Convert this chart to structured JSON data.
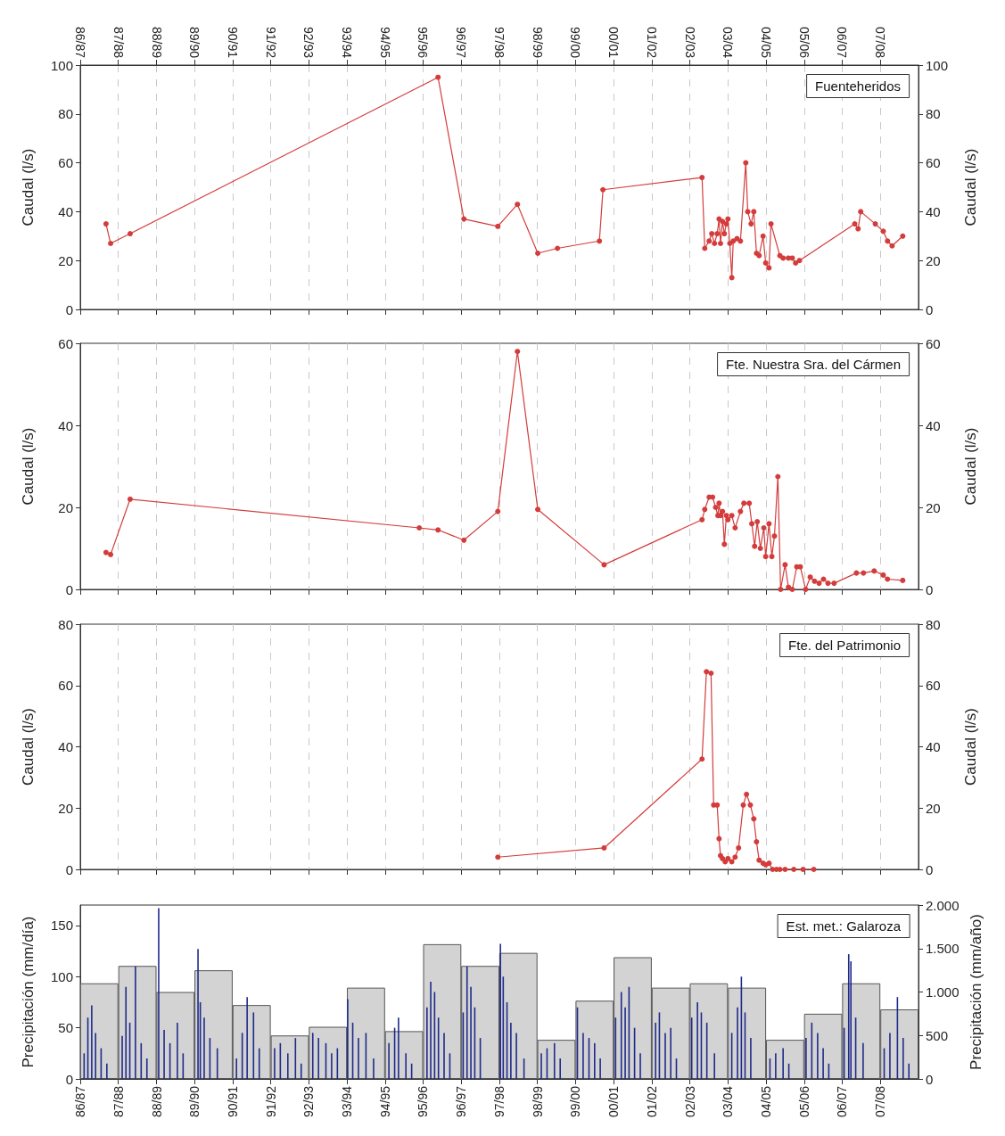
{
  "chart_data": [
    {
      "type": "line",
      "title": "Fuenteheridos",
      "ylabel": "Caudal (l/s)",
      "y2label": "Caudal (l/s)",
      "marker": "circle",
      "grid": "x",
      "xlim": [
        "1986-10-01",
        "2008-10-01"
      ],
      "x2lim": [
        "1986-10-01",
        "2008-10-01"
      ],
      "x2ticks": [
        {
          "value": "1986-10-01",
          "label": "86/87"
        },
        {
          "value": "1987-10-01",
          "label": "87/88"
        },
        {
          "value": "1988-10-01",
          "label": "88/89"
        },
        {
          "value": "1989-10-01",
          "label": "89/90"
        },
        {
          "value": "1990-10-01",
          "label": "90/91"
        },
        {
          "value": "1991-10-01",
          "label": "91/92"
        },
        {
          "value": "1992-10-01",
          "label": "92/93"
        },
        {
          "value": "1993-10-01",
          "label": "93/94"
        },
        {
          "value": "1994-10-01",
          "label": "94/95"
        },
        {
          "value": "1995-10-01",
          "label": "95/96"
        },
        {
          "value": "1996-10-01",
          "label": "96/97"
        },
        {
          "value": "1997-10-01",
          "label": "97/98"
        },
        {
          "value": "1998-10-01",
          "label": "98/99"
        },
        {
          "value": "1999-10-01",
          "label": "99/00"
        },
        {
          "value": "2000-10-01",
          "label": "00/01"
        },
        {
          "value": "2001-10-01",
          "label": "01/02"
        },
        {
          "value": "2002-10-01",
          "label": "02/03"
        },
        {
          "value": "2003-10-01",
          "label": "03/04"
        },
        {
          "value": "2004-10-01",
          "label": "04/05"
        },
        {
          "value": "2005-10-01",
          "label": "05/06"
        },
        {
          "value": "2006-10-01",
          "label": "06/07"
        },
        {
          "value": "2007-10-01",
          "label": "07/08"
        }
      ],
      "ylim": [
        0,
        100
      ],
      "yticks": [
        0,
        20,
        40,
        60,
        80,
        100
      ],
      "y2lim": [
        0,
        100
      ],
      "y2ticks": [
        0,
        20,
        40,
        60,
        80,
        100
      ],
      "series": [
        {
          "color": "#d43c3c",
          "x": [
            "1987-06-05",
            "1987-07-19",
            "1988-01-22",
            "1996-02-21",
            "1996-10-26",
            "1997-09-16",
            "1998-03-23",
            "1998-10-04",
            "1999-04-11",
            "2000-05-17",
            "2000-06-20",
            "2003-01-26",
            "2003-02-21",
            "2003-04-04",
            "2003-04-29",
            "2003-05-25",
            "2003-06-20",
            "2003-07-08",
            "2003-07-22",
            "2003-08-10",
            "2003-08-28",
            "2003-09-16",
            "2003-10-01",
            "2003-10-19",
            "2003-11-07",
            "2003-11-21",
            "2003-12-27",
            "2004-01-29",
            "2004-03-20",
            "2004-04-08",
            "2004-05-10",
            "2004-06-05",
            "2004-07-01",
            "2004-07-26",
            "2004-09-02",
            "2004-09-27",
            "2004-10-29",
            "2004-11-17",
            "2005-02-10",
            "2005-03-13",
            "2005-05-03",
            "2005-06-09",
            "2005-07-11",
            "2005-08-17",
            "2007-01-29",
            "2007-03-02",
            "2007-03-27",
            "2007-08-14",
            "2007-10-29",
            "2007-12-09",
            "2008-01-22",
            "2008-05-03"
          ],
          "values": [
            35,
            27,
            31,
            95,
            37,
            34,
            43,
            23,
            25,
            28,
            49,
            54,
            25,
            28,
            31,
            27,
            31,
            37,
            27,
            36,
            31,
            35,
            37,
            27,
            13,
            28,
            29,
            28,
            60,
            40,
            35,
            40,
            23,
            22,
            30,
            19,
            17,
            35,
            22,
            21,
            21,
            21,
            19,
            20,
            35,
            33,
            40,
            35,
            32,
            28,
            26,
            30
          ]
        }
      ]
    },
    {
      "type": "line",
      "title": "Fte. Nuestra Sra. del Cármen",
      "ylabel": "Caudal (l/s)",
      "y2label": "Caudal (l/s)",
      "marker": "circle",
      "grid": "x",
      "tick_labels": "y",
      "xlim": [
        "1986-10-01",
        "2008-10-01"
      ],
      "xticks": [
        {
          "value": "1986-10-01",
          "label": null
        },
        {
          "value": "1987-10-01",
          "label": null
        },
        {
          "value": "1988-10-01",
          "label": null
        },
        {
          "value": "1989-10-01",
          "label": null
        },
        {
          "value": "1990-10-01",
          "label": null
        },
        {
          "value": "1991-10-01",
          "label": null
        },
        {
          "value": "1992-10-01",
          "label": null
        },
        {
          "value": "1993-10-01",
          "label": null
        },
        {
          "value": "1994-10-01",
          "label": null
        },
        {
          "value": "1995-10-01",
          "label": null
        },
        {
          "value": "1996-10-01",
          "label": null
        },
        {
          "value": "1997-10-01",
          "label": null
        },
        {
          "value": "1998-10-01",
          "label": null
        },
        {
          "value": "1999-10-01",
          "label": null
        },
        {
          "value": "2000-10-01",
          "label": null
        },
        {
          "value": "2001-10-01",
          "label": null
        },
        {
          "value": "2002-10-01",
          "label": null
        },
        {
          "value": "2003-10-01",
          "label": null
        },
        {
          "value": "2004-10-01",
          "label": null
        },
        {
          "value": "2005-10-01",
          "label": null
        },
        {
          "value": "2006-10-01",
          "label": null
        },
        {
          "value": "2007-10-01",
          "label": null
        }
      ],
      "ylim": [
        0,
        60
      ],
      "yticks": [
        0,
        20,
        40,
        60
      ],
      "y2lim": [
        0,
        60
      ],
      "y2ticks": [
        0,
        20,
        40,
        60
      ],
      "series": [
        {
          "color": "#d43c3c",
          "x": [
            "1987-06-05",
            "1987-07-19",
            "1988-01-22",
            "1995-08-25",
            "1996-02-21",
            "1996-10-26",
            "1997-09-16",
            "1998-03-23",
            "1998-10-04",
            "2000-07-01",
            "2003-01-26",
            "2003-02-21",
            "2003-04-04",
            "2003-05-07",
            "2003-06-05",
            "2003-06-27",
            "2003-07-08",
            "2003-07-22",
            "2003-08-10",
            "2003-08-28",
            "2003-09-16",
            "2003-10-01",
            "2003-11-07",
            "2003-12-09",
            "2004-01-29",
            "2004-03-02",
            "2004-04-22",
            "2004-05-17",
            "2004-06-13",
            "2004-07-08",
            "2004-08-07",
            "2004-09-09",
            "2004-09-27",
            "2004-10-29",
            "2004-11-25",
            "2004-12-20",
            "2005-01-22",
            "2005-02-17",
            "2005-04-01",
            "2005-05-03",
            "2005-06-09",
            "2005-07-22",
            "2005-08-25",
            "2005-10-15",
            "2005-11-28",
            "2006-01-08",
            "2006-02-21",
            "2006-04-04",
            "2006-05-17",
            "2006-07-15",
            "2007-02-14",
            "2007-04-22",
            "2007-08-03",
            "2007-10-29",
            "2007-12-09",
            "2008-05-03"
          ],
          "values": [
            9,
            8.5,
            22,
            15,
            14.5,
            12,
            19,
            58,
            19.5,
            6,
            17,
            19.5,
            22.5,
            22.5,
            20,
            18,
            21,
            18,
            19,
            11,
            18,
            17,
            18,
            15,
            19,
            21,
            21,
            16,
            10.5,
            16.5,
            10,
            15,
            8,
            16,
            8,
            13,
            27.5,
            0,
            6,
            0.5,
            0,
            5.5,
            5.5,
            0,
            3,
            2,
            1.5,
            2.5,
            1.5,
            1.5,
            4,
            4,
            4.5,
            3.5,
            2.5,
            2.2
          ]
        }
      ]
    },
    {
      "type": "line",
      "title": "Fte. del Patrimonio",
      "ylabel": "Caudal (l/s)",
      "y2label": "Caudal (l/s)",
      "marker": "circle",
      "grid": "x",
      "tick_labels": "y",
      "xlim": [
        "1986-10-01",
        "2008-10-01"
      ],
      "xticks": [
        {
          "value": "1986-10-01",
          "label": null
        },
        {
          "value": "1987-10-01",
          "label": null
        },
        {
          "value": "1988-10-01",
          "label": null
        },
        {
          "value": "1989-10-01",
          "label": null
        },
        {
          "value": "1990-10-01",
          "label": null
        },
        {
          "value": "1991-10-01",
          "label": null
        },
        {
          "value": "1992-10-01",
          "label": null
        },
        {
          "value": "1993-10-01",
          "label": null
        },
        {
          "value": "1994-10-01",
          "label": null
        },
        {
          "value": "1995-10-01",
          "label": null
        },
        {
          "value": "1996-10-01",
          "label": null
        },
        {
          "value": "1997-10-01",
          "label": null
        },
        {
          "value": "1998-10-01",
          "label": null
        },
        {
          "value": "1999-10-01",
          "label": null
        },
        {
          "value": "2000-10-01",
          "label": null
        },
        {
          "value": "2001-10-01",
          "label": null
        },
        {
          "value": "2002-10-01",
          "label": null
        },
        {
          "value": "2003-10-01",
          "label": null
        },
        {
          "value": "2004-10-01",
          "label": null
        },
        {
          "value": "2005-10-01",
          "label": null
        },
        {
          "value": "2006-10-01",
          "label": null
        },
        {
          "value": "2007-10-01",
          "label": null
        }
      ],
      "ylim": [
        0,
        80
      ],
      "yticks": [
        0,
        20,
        40,
        60,
        80
      ],
      "y2lim": [
        0,
        80
      ],
      "y2ticks": [
        0,
        20,
        40,
        60,
        80
      ],
      "series": [
        {
          "color": "#d43c3c",
          "x": [
            "1997-09-16",
            "2000-07-01",
            "2003-01-26",
            "2003-03-09",
            "2003-04-22",
            "2003-05-17",
            "2003-06-20",
            "2003-07-08",
            "2003-07-22",
            "2003-08-10",
            "2003-09-05",
            "2003-10-01",
            "2003-11-07",
            "2003-12-09",
            "2004-01-11",
            "2004-02-25",
            "2004-03-27",
            "2004-05-03",
            "2004-06-05",
            "2004-07-01",
            "2004-07-26",
            "2004-09-02",
            "2004-09-27",
            "2004-10-29",
            "2004-12-02",
            "2005-01-08",
            "2005-02-10",
            "2005-04-01",
            "2005-06-23",
            "2005-09-20",
            "2006-01-01"
          ],
          "values": [
            4,
            7,
            36,
            64.5,
            64,
            21,
            21,
            10,
            4.5,
            3.5,
            2.5,
            3.5,
            2.5,
            4,
            7,
            21,
            24.5,
            21,
            16.5,
            9,
            3,
            2,
            1.5,
            2,
            0,
            0,
            0,
            0,
            0,
            0,
            0
          ]
        }
      ]
    },
    {
      "type": "bar",
      "title": "Est. met.: Galaroza",
      "ylabel": "Precipitación (mm/día)",
      "y2label": "Precipitación (mm/año)",
      "xlim": [
        "1986-10-01",
        "2008-10-01"
      ],
      "xticks": [
        {
          "value": "1986-10-01",
          "label": "86/87"
        },
        {
          "value": "1987-10-01",
          "label": "87/88"
        },
        {
          "value": "1988-10-01",
          "label": "88/89"
        },
        {
          "value": "1989-10-01",
          "label": "89/90"
        },
        {
          "value": "1990-10-01",
          "label": "90/91"
        },
        {
          "value": "1991-10-01",
          "label": "91/92"
        },
        {
          "value": "1992-10-01",
          "label": "92/93"
        },
        {
          "value": "1993-10-01",
          "label": "93/94"
        },
        {
          "value": "1994-10-01",
          "label": "94/95"
        },
        {
          "value": "1995-10-01",
          "label": "95/96"
        },
        {
          "value": "1996-10-01",
          "label": "96/97"
        },
        {
          "value": "1997-10-01",
          "label": "97/98"
        },
        {
          "value": "1998-10-01",
          "label": "98/99"
        },
        {
          "value": "1999-10-01",
          "label": "99/00"
        },
        {
          "value": "2000-10-01",
          "label": "00/01"
        },
        {
          "value": "2001-10-01",
          "label": "01/02"
        },
        {
          "value": "2002-10-01",
          "label": "02/03"
        },
        {
          "value": "2003-10-01",
          "label": "03/04"
        },
        {
          "value": "2004-10-01",
          "label": "04/05"
        },
        {
          "value": "2005-10-01",
          "label": "05/06"
        },
        {
          "value": "2006-10-01",
          "label": "06/07"
        },
        {
          "value": "2007-10-01",
          "label": "07/08"
        }
      ],
      "ylim": [
        0,
        170
      ],
      "yticks": [
        0,
        50,
        100,
        150
      ],
      "y2lim": [
        0,
        2000
      ],
      "y2ticks": [
        0,
        {
          "value": 500,
          "label": "500"
        },
        {
          "value": 1000,
          "label": "1.000"
        },
        {
          "value": 1500,
          "label": "1.500"
        },
        {
          "value": 2000,
          "label": "2.000"
        }
      ],
      "series": [
        {
          "color": "#d3d3d3",
          "axis": "y2",
          "x": [
            "1987-04-01",
            "1988-04-01",
            "1989-04-01",
            "1990-04-01",
            "1991-04-01",
            "1992-04-01",
            "1993-04-01",
            "1994-04-01",
            "1995-04-01",
            "1996-04-01",
            "1997-04-01",
            "1998-04-01",
            "1999-04-01",
            "2000-04-01",
            "2001-04-01",
            "2002-04-01",
            "2003-04-01",
            "2004-04-01",
            "2005-04-01",
            "2006-04-01",
            "2007-04-01",
            "2008-04-01"
          ],
          "values": [
            1100,
            1300,
            1000,
            1250,
            850,
            500,
            600,
            1050,
            550,
            1550,
            1300,
            1450,
            450,
            900,
            1400,
            1050,
            1100,
            1050,
            450,
            750,
            1100,
            800
          ]
        },
        {
          "color": "#1f2a8a",
          "x": [
            "1986-11-07",
            "1986-12-13",
            "1987-01-19",
            "1987-02-25",
            "1987-04-19",
            "1987-06-13",
            "1987-11-07",
            "1987-12-13",
            "1988-01-19",
            "1988-03-13",
            "1988-05-07",
            "1988-07-01",
            "1988-10-22",
            "1988-12-13",
            "1989-02-07",
            "1989-04-19",
            "1989-06-13",
            "1989-11-03",
            "1989-11-25",
            "1990-01-01",
            "1990-02-25",
            "1990-05-07",
            "1990-11-07",
            "1991-01-01",
            "1991-02-17",
            "1991-04-19",
            "1991-06-13",
            "1991-11-07",
            "1992-01-01",
            "1992-03-13",
            "1992-05-25",
            "1992-07-19",
            "1992-11-07",
            "1993-01-01",
            "1993-03-13",
            "1993-05-07",
            "1993-07-01",
            "1993-10-08",
            "1993-11-25",
            "1994-01-19",
            "1994-04-01",
            "1994-06-13",
            "1994-11-07",
            "1995-01-01",
            "1995-02-07",
            "1995-04-19",
            "1995-06-13",
            "1995-11-07",
            "1995-12-13",
            "1996-01-19",
            "1996-02-25",
            "1996-04-19",
            "1996-06-13",
            "1996-10-19",
            "1996-11-25",
            "1997-01-01",
            "1997-02-07",
            "1997-04-01",
            "1997-10-11",
            "1997-11-07",
            "1997-12-13",
            "1998-01-19",
            "1998-03-13",
            "1998-05-25",
            "1998-11-07",
            "1999-01-01",
            "1999-03-13",
            "1999-05-07",
            "1999-10-19",
            "1999-12-13",
            "2000-02-07",
            "2000-04-01",
            "2000-05-25",
            "2000-10-19",
            "2000-12-13",
            "2001-01-19",
            "2001-02-25",
            "2001-04-19",
            "2001-06-13",
            "2001-11-07",
            "2001-12-13",
            "2002-02-07",
            "2002-04-01",
            "2002-05-25",
            "2002-10-19",
            "2002-12-13",
            "2003-01-19",
            "2003-03-13",
            "2003-05-25",
            "2003-11-07",
            "2004-01-01",
            "2004-02-07",
            "2004-03-13",
            "2004-05-07",
            "2004-11-07",
            "2005-01-01",
            "2005-03-13",
            "2005-05-07",
            "2005-10-19",
            "2005-12-13",
            "2006-02-07",
            "2006-04-01",
            "2006-05-25",
            "2006-10-19",
            "2006-12-02",
            "2006-12-23",
            "2007-02-07",
            "2007-04-19",
            "2007-11-07",
            "2008-01-01",
            "2008-03-13",
            "2008-05-07",
            "2008-07-01"
          ],
          "values": [
            25,
            60,
            72,
            45,
            30,
            15,
            42,
            90,
            55,
            110,
            35,
            20,
            167,
            48,
            35,
            55,
            25,
            127,
            75,
            60,
            40,
            30,
            20,
            45,
            80,
            65,
            30,
            30,
            35,
            25,
            40,
            15,
            45,
            40,
            35,
            25,
            30,
            78,
            55,
            40,
            45,
            20,
            35,
            50,
            60,
            25,
            15,
            70,
            95,
            85,
            60,
            45,
            25,
            65,
            110,
            90,
            70,
            40,
            132,
            100,
            75,
            55,
            45,
            20,
            25,
            30,
            35,
            20,
            70,
            45,
            40,
            35,
            20,
            60,
            85,
            70,
            90,
            50,
            25,
            55,
            65,
            45,
            50,
            20,
            60,
            75,
            65,
            55,
            25,
            45,
            70,
            100,
            65,
            40,
            20,
            25,
            30,
            15,
            40,
            55,
            45,
            30,
            15,
            50,
            122,
            115,
            60,
            35,
            30,
            45,
            80,
            40,
            15
          ]
        }
      ]
    }
  ]
}
